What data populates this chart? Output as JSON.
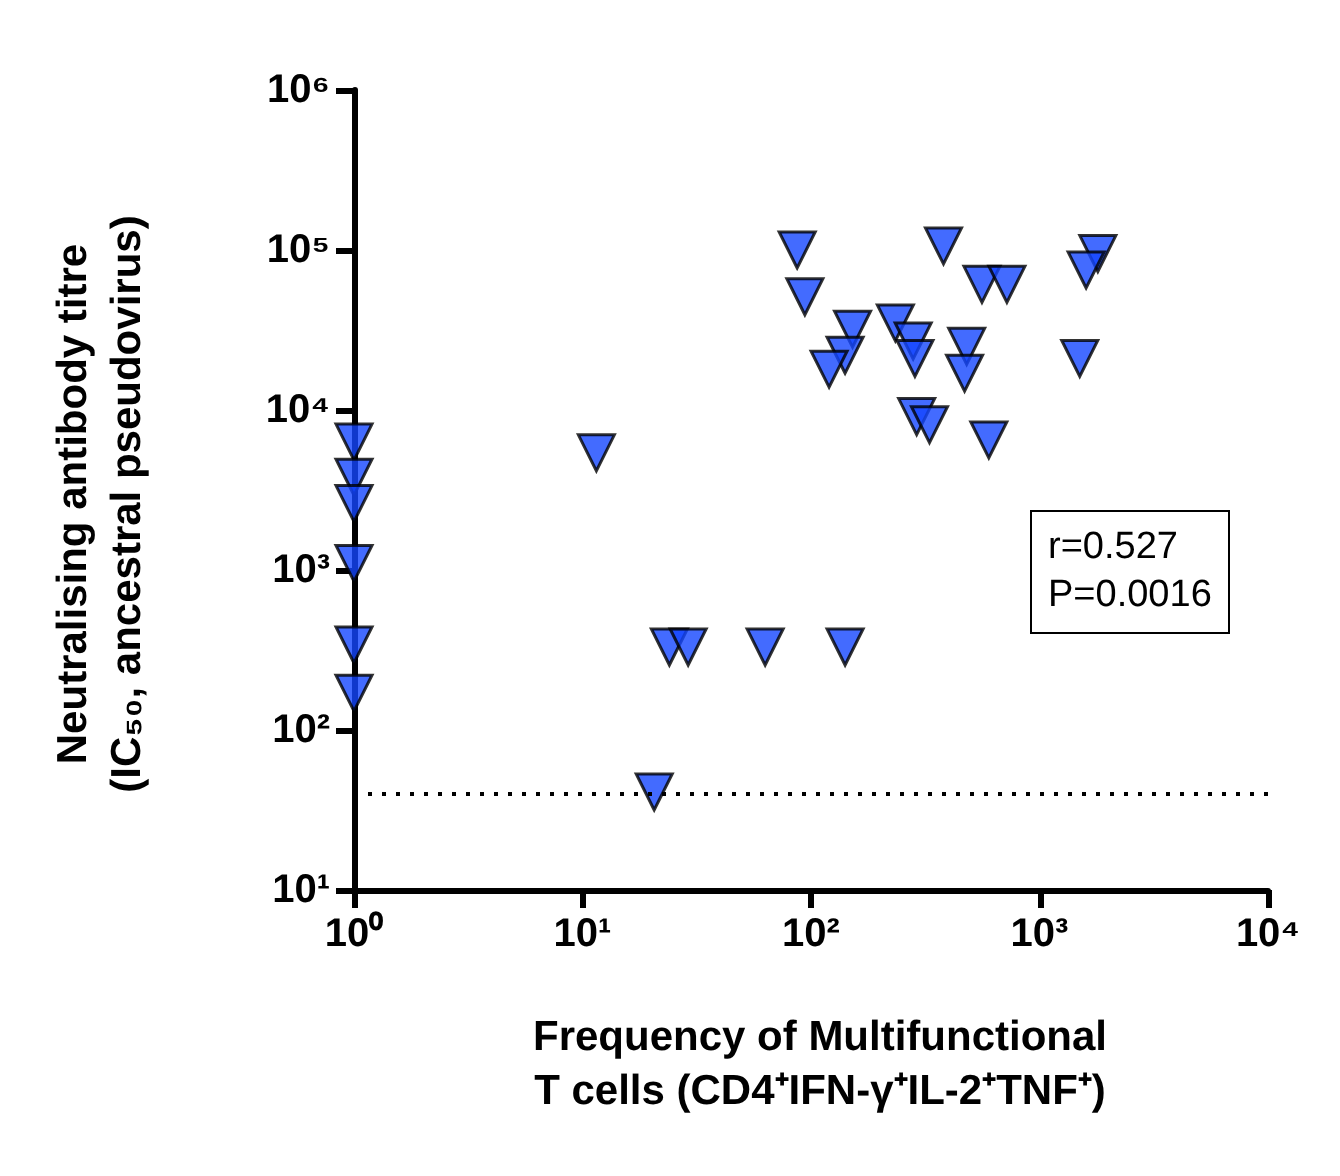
{
  "chart_data": {
    "type": "scatter",
    "xlabel": "Frequency of Multifunctional\nT cells (CD4⁺IFN-γ⁺IL-2⁺TNF⁺)",
    "ylabel": "Neutralising antibody titre\n(IC₅₀, ancestral pseudovirus)",
    "log": "xy",
    "marker": "triangle",
    "grid": false,
    "xlim": [
      1,
      10000
    ],
    "ylim": [
      10,
      1000000
    ],
    "xticks": [
      {
        "value": 1,
        "label": "10⁰"
      },
      {
        "value": 10,
        "label": "10¹"
      },
      {
        "value": 100,
        "label": "10²"
      },
      {
        "value": 1000,
        "label": "10³"
      },
      {
        "value": 10000,
        "label": "10⁴"
      }
    ],
    "yticks": [
      {
        "value": 10,
        "label": "10¹"
      },
      {
        "value": 100,
        "label": "10²"
      },
      {
        "value": 1000,
        "label": "10³"
      },
      {
        "value": 10000,
        "label": "10⁴"
      },
      {
        "value": 100000,
        "label": "10⁵"
      },
      {
        "value": 1000000,
        "label": "10⁶"
      }
    ],
    "series": [
      {
        "color": "#1446ff",
        "x": [
          1,
          1,
          1,
          1,
          1,
          1,
          11.5,
          24,
          29,
          63,
          141,
          20.6,
          87,
          94,
          152,
          141,
          120,
          234,
          280,
          285,
          380,
          560,
          720,
          480,
          470,
          290,
          330,
          600,
          1800,
          1600,
          1500
        ],
        "values": [
          6300,
          3800,
          2600,
          1100,
          340,
          170,
          5400,
          330,
          330,
          330,
          330,
          41,
          100000,
          51000,
          32000,
          22000,
          18000,
          35000,
          27000,
          21000,
          106000,
          61000,
          61000,
          25000,
          17000,
          9100,
          8100,
          6500,
          95000,
          75000,
          21000
        ]
      }
    ],
    "ref_lines": [
      {
        "axis": "y",
        "value": 40,
        "line_style": "dotted",
        "color": "#000000"
      }
    ],
    "annotations": [
      "r=0.527",
      "P=0.0016"
    ]
  }
}
